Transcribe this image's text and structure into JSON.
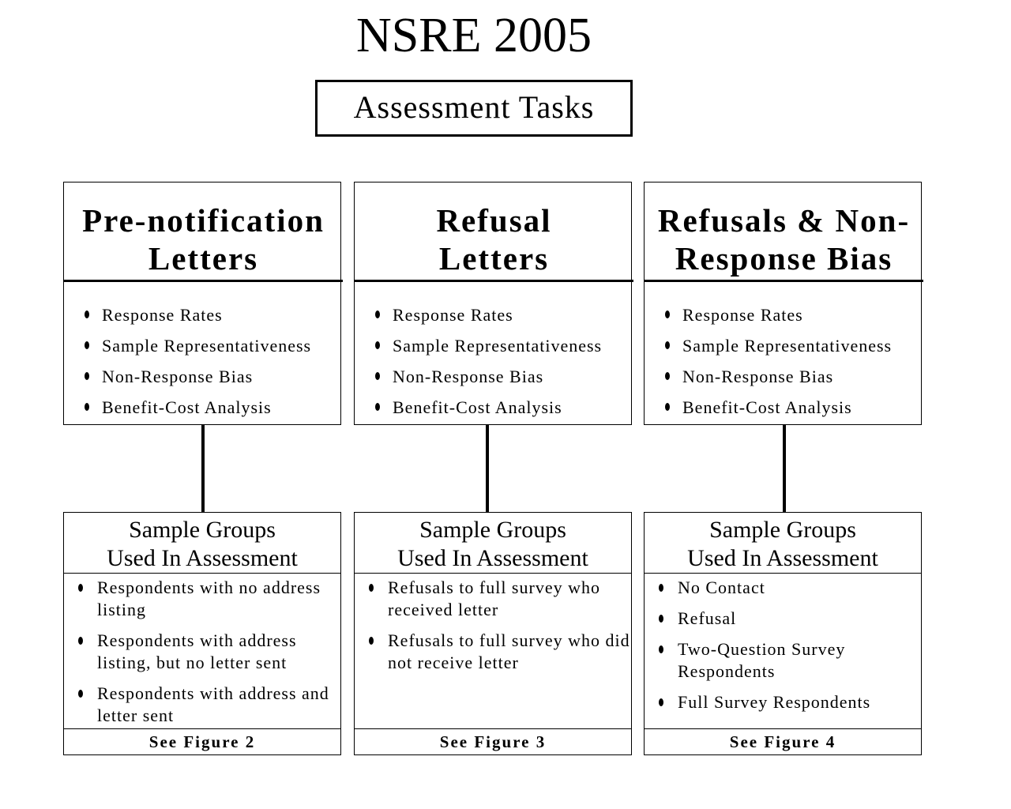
{
  "title": "NSRE 2005",
  "subtitle": "Assessment Tasks",
  "columns": [
    {
      "heading": [
        "Pre-notification",
        "Letters"
      ],
      "tasks": [
        "Response Rates",
        "Sample Representativeness",
        "Non-Response Bias",
        "Benefit-Cost Analysis"
      ],
      "groups_heading": [
        "Sample Groups",
        "Used In Assessment"
      ],
      "groups": [
        "Respondents with no address listing",
        "Respondents with address listing, but no letter sent",
        "Respondents with address and letter sent"
      ],
      "footer": "See Figure 2"
    },
    {
      "heading": [
        "Refusal",
        "Letters"
      ],
      "tasks": [
        "Response Rates",
        "Sample Representativeness",
        "Non-Response Bias",
        "Benefit-Cost Analysis"
      ],
      "groups_heading": [
        "Sample Groups",
        "Used In Assessment"
      ],
      "groups": [
        "Refusals to full survey who received letter",
        "Refusals to full survey who did not receive letter"
      ],
      "footer": "See Figure 3"
    },
    {
      "heading": [
        "Refusals & Non-",
        "Response Bias"
      ],
      "tasks": [
        "Response Rates",
        "Sample Representativeness",
        "Non-Response Bias",
        "Benefit-Cost Analysis"
      ],
      "groups_heading": [
        "Sample Groups",
        "Used In Assessment"
      ],
      "groups": [
        "No Contact",
        "Refusal",
        "Two-Question Survey Respondents",
        "Full Survey Respondents"
      ],
      "footer": "See Figure 4"
    }
  ]
}
